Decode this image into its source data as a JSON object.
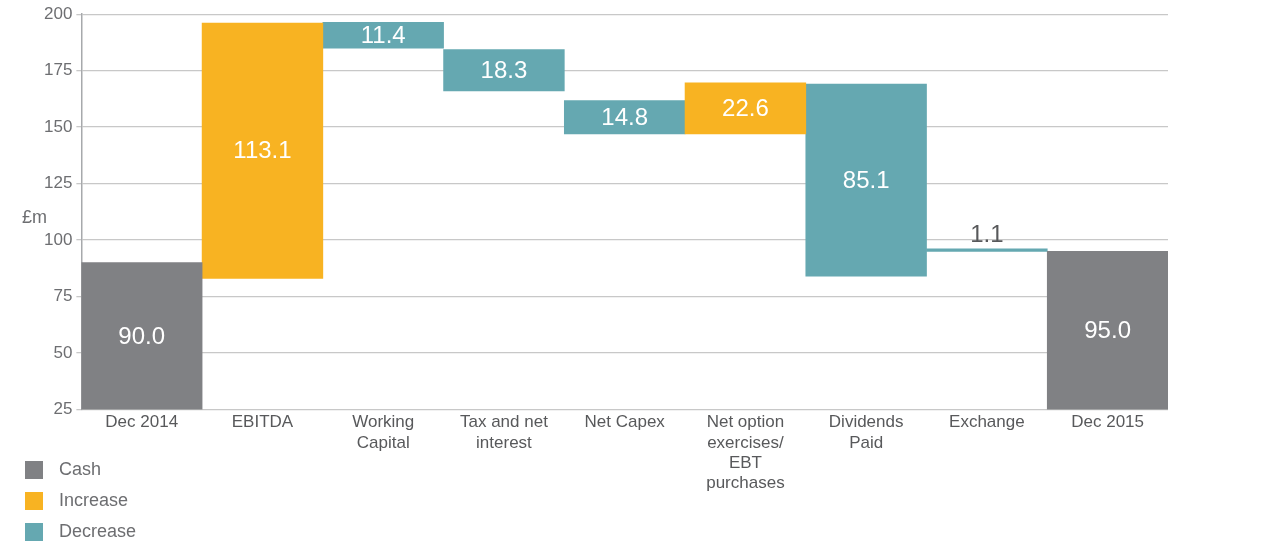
{
  "chart_data": {
    "type": "bar",
    "ylabel": "£m",
    "categories": [
      "Dec 2014",
      "EBITDA",
      "Working Capital",
      "Tax and net interest",
      "Net Capex",
      "Net option exercises/ EBT purchases",
      "Dividends Paid",
      "Exchange",
      "Dec 2015"
    ],
    "series": [
      {
        "name": "Cash",
        "color": "#808184",
        "values": [
          90,
          null,
          null,
          null,
          null,
          null,
          null,
          null,
          95
        ],
        "value_labels": [
          "90.0",
          null,
          null,
          null,
          null,
          null,
          null,
          null,
          "95.0"
        ],
        "base": [
          null,
          null,
          null,
          null,
          null,
          null,
          null,
          null,
          null
        ]
      },
      {
        "name": "Increase",
        "color": "#f8b322",
        "values": [
          null,
          113.1,
          null,
          null,
          null,
          22.6,
          null,
          null,
          null
        ],
        "value_labels": [
          null,
          "113.1",
          null,
          null,
          null,
          "22.6",
          null,
          null,
          null
        ],
        "base": [
          null,
          83,
          null,
          null,
          null,
          147,
          null,
          null,
          null
        ]
      },
      {
        "name": "Decrease",
        "color": "#65a8b1",
        "values": [
          null,
          null,
          11.4,
          18.3,
          14.8,
          null,
          85.1,
          1.1,
          null
        ],
        "value_labels": [
          null,
          null,
          "11.4",
          "18.3",
          "14.8",
          null,
          "85.1",
          "1.1",
          null
        ],
        "base": [
          null,
          null,
          185,
          166,
          147,
          null,
          84,
          95,
          null
        ]
      }
    ],
    "ylim": [
      25,
      200
    ],
    "yticks": [
      25,
      50,
      75,
      100,
      125,
      150,
      175,
      200
    ],
    "grid": "y",
    "legend": "bottom left"
  }
}
